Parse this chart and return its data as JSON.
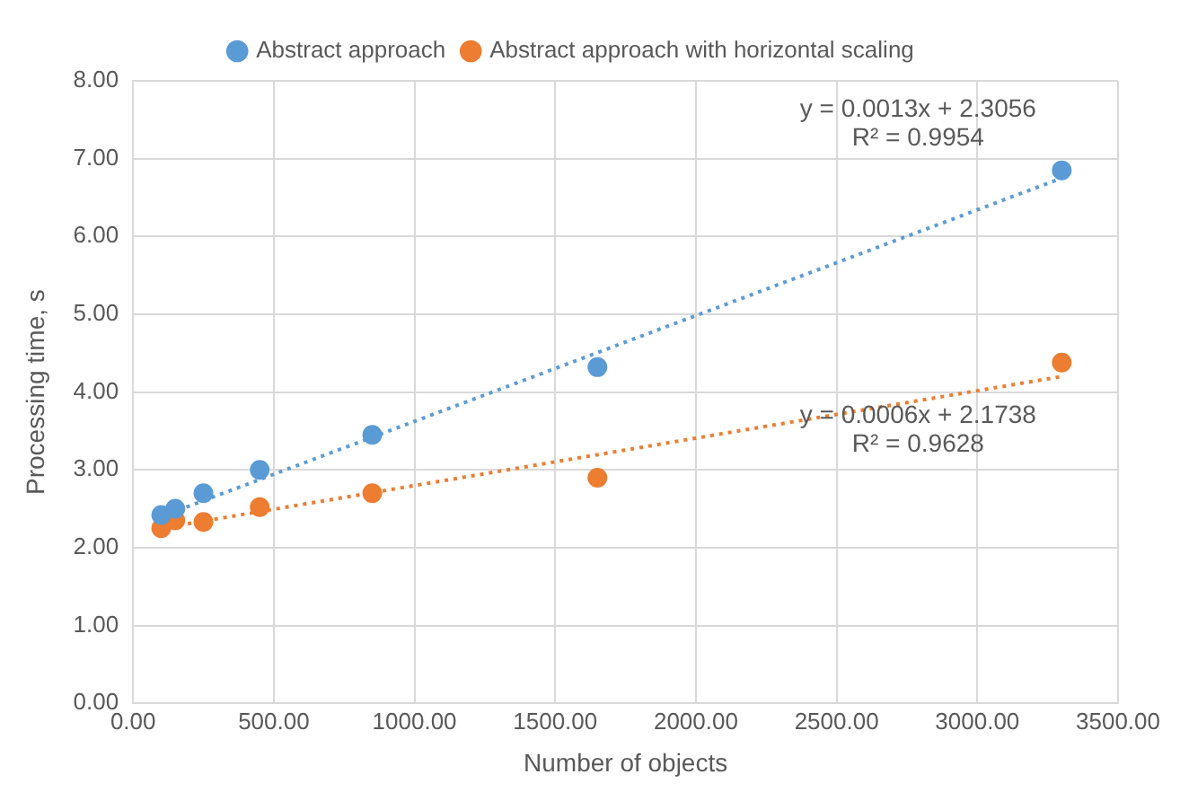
{
  "chart_data": {
    "type": "scatter",
    "xlabel": "Number of objects",
    "ylabel": "Processing time, s",
    "series": [
      {
        "name": "Abstract approach",
        "color": "#5b9bd5",
        "x": [
          100,
          150,
          250,
          450,
          850,
          1650,
          3300
        ],
        "values": [
          2.42,
          2.5,
          2.7,
          3.0,
          3.45,
          4.32,
          6.85
        ]
      },
      {
        "name": "Abstract approach with horizontal scaling",
        "color": "#ed7d31",
        "x": [
          100,
          150,
          250,
          450,
          850,
          1650,
          3300
        ],
        "values": [
          2.25,
          2.35,
          2.33,
          2.52,
          2.7,
          2.9,
          4.38
        ]
      },
      {
        "type": "line",
        "color": "#5b9bd5",
        "x": [
          100,
          3300
        ],
        "values": [
          2.4,
          6.75
        ],
        "line_style": "dotted",
        "marker": "none"
      },
      {
        "type": "line",
        "color": "#ed7d31",
        "x": [
          100,
          3300
        ],
        "values": [
          2.25,
          4.2
        ],
        "line_style": "dotted",
        "marker": "none"
      }
    ],
    "xlim": [
      0,
      3500
    ],
    "xticks": [
      {
        "value": 0,
        "label": "0.00"
      },
      {
        "value": 500,
        "label": "500.00"
      },
      {
        "value": 1000,
        "label": "1000.00"
      },
      {
        "value": 1500,
        "label": "1500.00"
      },
      {
        "value": 2000,
        "label": "2000.00"
      },
      {
        "value": 2500,
        "label": "2500.00"
      },
      {
        "value": 3000,
        "label": "3000.00"
      },
      {
        "value": 3500,
        "label": "3500.00"
      }
    ],
    "ylim": [
      0,
      8
    ],
    "yticks": [
      {
        "value": 0,
        "label": "0.00"
      },
      {
        "value": 1,
        "label": "1.00"
      },
      {
        "value": 2,
        "label": "2.00"
      },
      {
        "value": 3,
        "label": "3.00"
      },
      {
        "value": 4,
        "label": "4.00"
      },
      {
        "value": 5,
        "label": "5.00"
      },
      {
        "value": 6,
        "label": "6.00"
      },
      {
        "value": 7,
        "label": "7.00"
      },
      {
        "value": 8,
        "label": "8.00"
      }
    ],
    "annotations": [
      "y = 0.0013x + 2.3056",
      "R² = 0.9954",
      "y = 0.0006x + 2.1738",
      "R² = 0.9628"
    ],
    "grid": true,
    "legend": "top",
    "marker": "circle"
  }
}
